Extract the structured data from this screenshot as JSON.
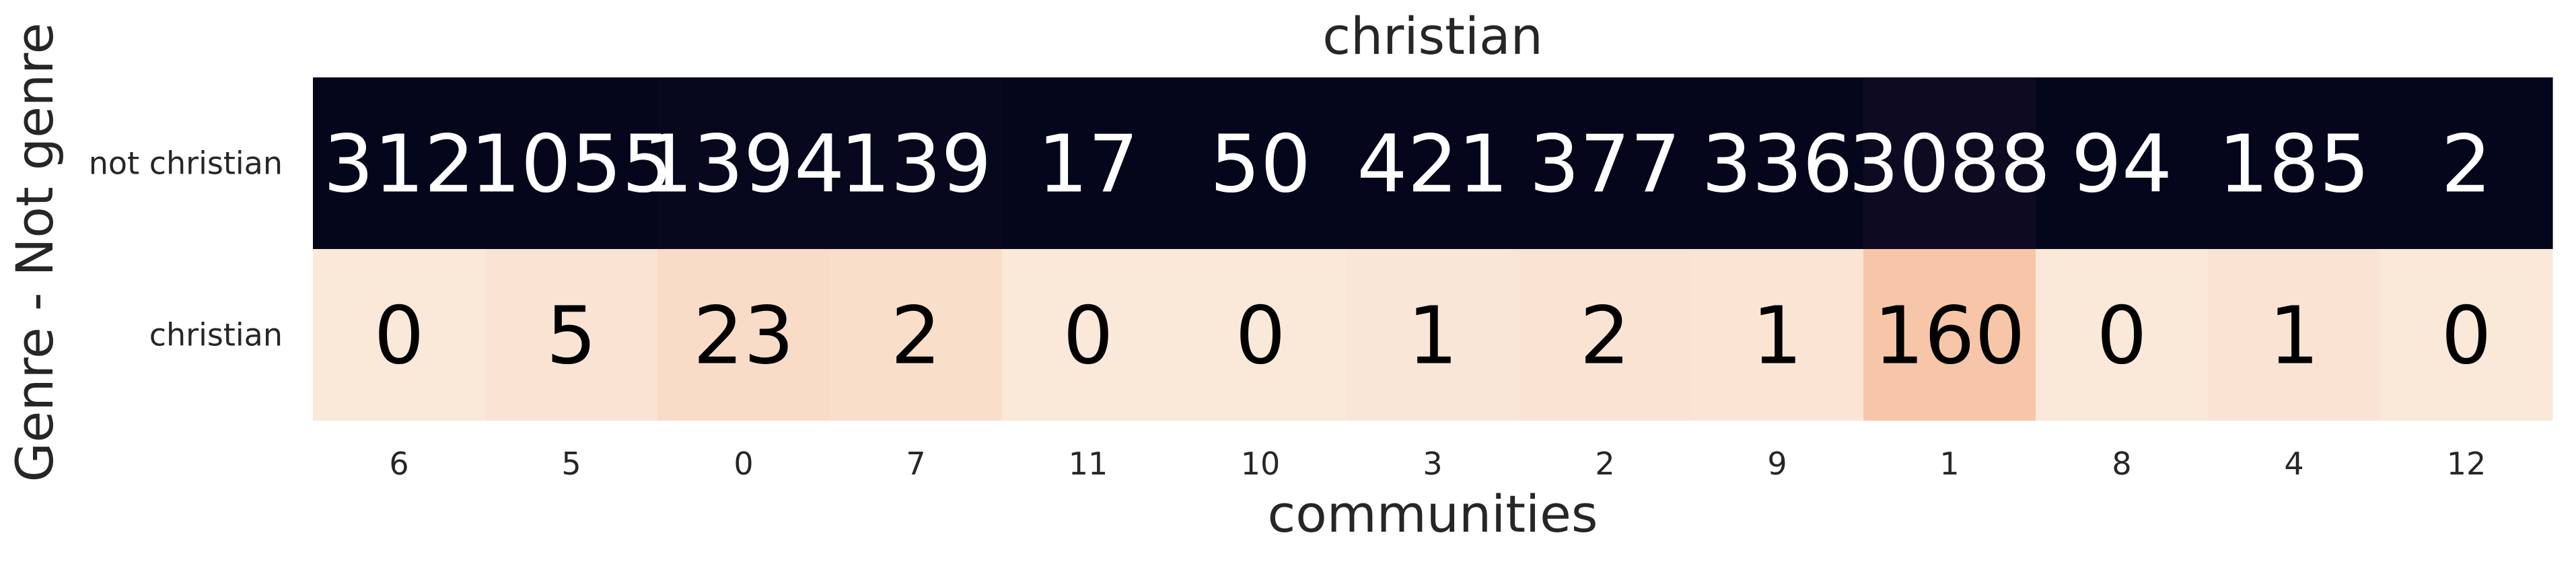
{
  "chart_data": {
    "type": "heatmap",
    "title": "christian",
    "xlabel": "communities",
    "ylabel": "Genre - Not genre",
    "x_categories": [
      "6",
      "5",
      "0",
      "7",
      "11",
      "10",
      "3",
      "2",
      "9",
      "1",
      "8",
      "4",
      "12"
    ],
    "y_categories": [
      "not christian",
      "christian"
    ],
    "values": [
      [
        312,
        1055,
        1394,
        139,
        17,
        50,
        421,
        377,
        336,
        3088,
        94,
        185,
        2
      ],
      [
        0,
        5,
        23,
        2,
        0,
        0,
        1,
        2,
        1,
        160,
        0,
        1,
        0
      ]
    ],
    "colormap": "rocket",
    "colorbar": false,
    "grid": false
  }
}
